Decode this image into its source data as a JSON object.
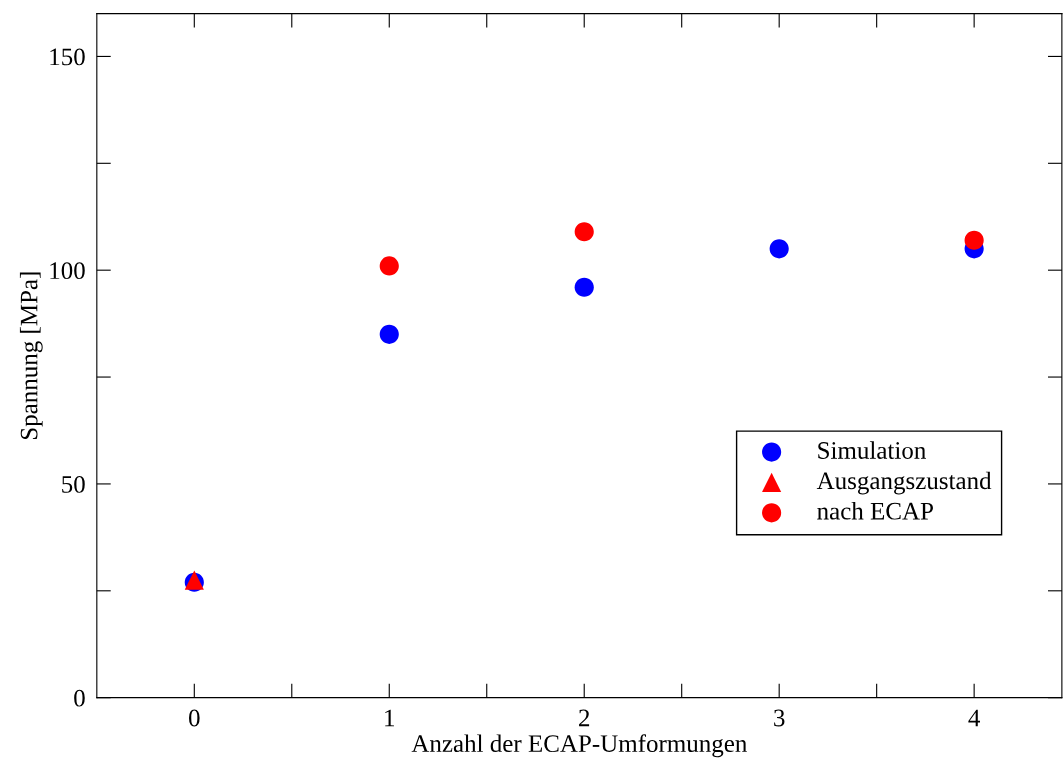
{
  "chart_data": {
    "type": "scatter",
    "xlabel": "Anzahl der ECAP-Umformungen",
    "ylabel": "Spannung [MPa]",
    "xlim": [
      -0.5,
      4.45
    ],
    "ylim": [
      0,
      160
    ],
    "xticks": [
      0,
      {
        "value": 0.5,
        "label": null
      },
      1,
      {
        "value": 1.5,
        "label": null
      },
      2,
      {
        "value": 2.5,
        "label": null
      },
      3,
      {
        "value": 3.5,
        "label": null
      },
      4
    ],
    "yticks": [
      0,
      {
        "value": 25,
        "label": null
      },
      50,
      {
        "value": 75,
        "label": null
      },
      100,
      {
        "value": 125,
        "label": null
      },
      150
    ],
    "grid": false,
    "legend": "right",
    "series": [
      {
        "name": "Simulation",
        "color": "#0000ff",
        "marker": "circle",
        "x": [
          0,
          1,
          2,
          3,
          4
        ],
        "values": [
          27,
          85,
          96,
          105,
          105
        ]
      },
      {
        "name": "Ausgangszustand",
        "color": "#ff0000",
        "marker": "triangle",
        "x": [
          0
        ],
        "values": [
          27.5
        ]
      },
      {
        "name": "nach ECAP",
        "color": "#ff0000",
        "marker": "circle",
        "x": [
          1,
          2,
          4
        ],
        "values": [
          101,
          109,
          107
        ]
      }
    ]
  }
}
